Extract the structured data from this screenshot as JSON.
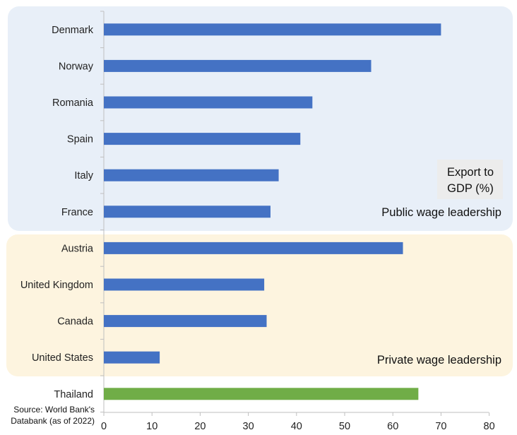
{
  "chart_data": {
    "type": "bar",
    "orientation": "horizontal",
    "categories": [
      "Denmark",
      "Norway",
      "Romania",
      "Spain",
      "Italy",
      "France",
      "Austria",
      "United Kingdom",
      "Canada",
      "United States",
      "Thailand"
    ],
    "values": [
      70.0,
      55.5,
      43.3,
      40.8,
      36.3,
      34.6,
      62.1,
      33.3,
      33.8,
      11.6,
      65.3
    ],
    "groups": [
      {
        "label": "Public wage leadership",
        "categories": [
          "Denmark",
          "Norway",
          "Romania",
          "Spain",
          "Italy",
          "France"
        ],
        "color": "#e8eff8"
      },
      {
        "label": "Private wage leadership",
        "categories": [
          "Austria",
          "United Kingdom",
          "Canada",
          "United States"
        ],
        "color": "#fdf4df"
      }
    ],
    "bar_colors": {
      "default": "#4472c4",
      "Thailand": "#70ad47"
    },
    "xlim": [
      0,
      80
    ],
    "xticks": [
      0,
      10,
      20,
      30,
      40,
      50,
      60,
      70,
      80
    ],
    "legend_box": {
      "line1": "Export to",
      "line2": "GDP (%)"
    },
    "source_note": {
      "line1": "Source: World Bank's",
      "line2": "Databank (as of 2022)"
    },
    "grid": false
  }
}
